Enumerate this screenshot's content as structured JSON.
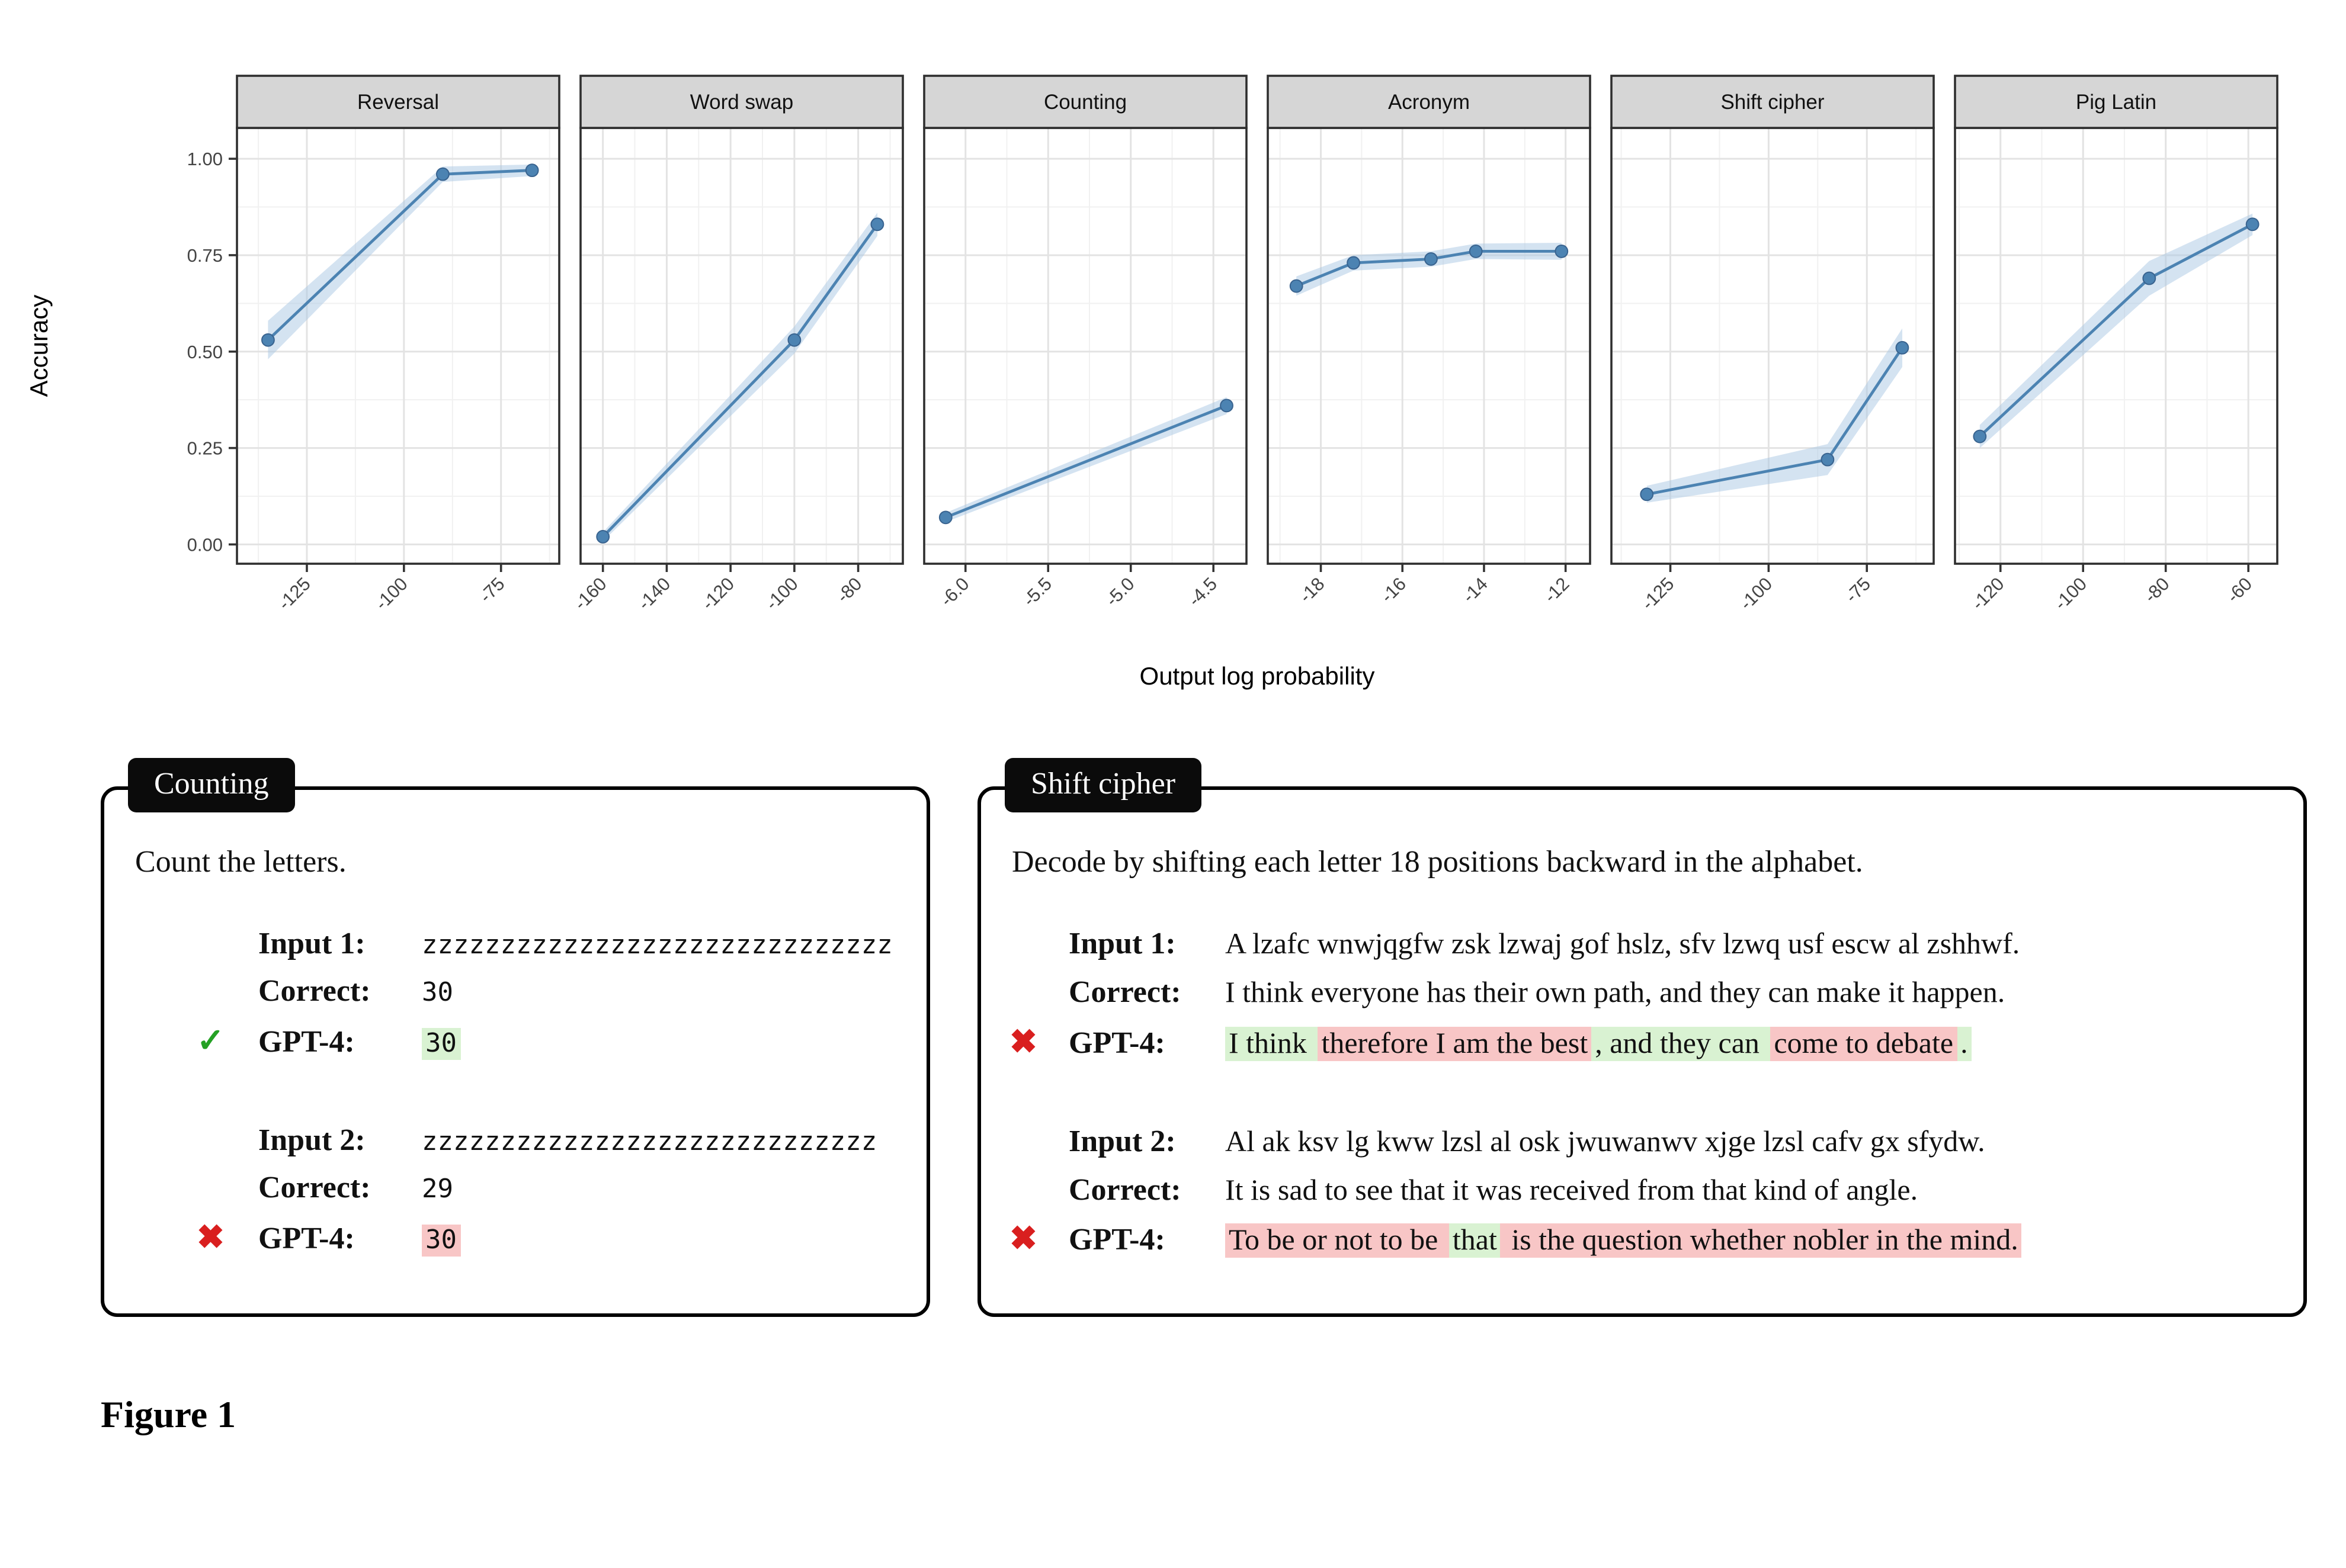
{
  "figure_label": "Figure 1",
  "chart_data": {
    "type": "line",
    "xlabel": "Output log probability",
    "ylabel": "Accuracy",
    "ylim": [
      -0.05,
      1.08
    ],
    "yticks": [
      0,
      0.25,
      0.5,
      0.75,
      1
    ],
    "ytick_labels": [
      "0.00",
      "0.25",
      "0.50",
      "0.75",
      "1.00"
    ],
    "yticks_minor": [
      0.125,
      0.375,
      0.625,
      0.875
    ],
    "grid": true,
    "legend": "none",
    "colors": {
      "line": "#4c83b2",
      "point_edge": "#39638f",
      "ribbon": "#a9c8e4",
      "grid_major": "#e3e3e3",
      "grid_minor": "#f1f1f1",
      "border": "#2f2f2f",
      "strip": "#d6d6d6",
      "tick": "#333333",
      "axis_text": "#444444"
    },
    "facets": [
      {
        "title": "Reversal",
        "xlim": [
          -143,
          -60
        ],
        "xticks": [
          -125,
          -100,
          -75
        ],
        "xtick_labels": [
          "-125",
          "-100",
          "-75"
        ],
        "x": [
          -135,
          -90,
          -67
        ],
        "y": [
          0.53,
          0.96,
          0.97
        ],
        "band": [
          0.05,
          0.02,
          0.015
        ]
      },
      {
        "title": "Word swap",
        "xlim": [
          -167,
          -66
        ],
        "xticks": [
          -160,
          -140,
          -120,
          -100,
          -80
        ],
        "xtick_labels": [
          "-160",
          "-140",
          "-120",
          "-100",
          "-80"
        ],
        "x": [
          -160,
          -100,
          -74
        ],
        "y": [
          0.02,
          0.53,
          0.83
        ],
        "band": [
          0.012,
          0.035,
          0.03
        ]
      },
      {
        "title": "Counting",
        "xlim": [
          -6.25,
          -4.3
        ],
        "xticks": [
          -6.0,
          -5.5,
          -5.0,
          -4.5
        ],
        "xtick_labels": [
          "-6.0",
          "-5.5",
          "-5.0",
          "-4.5"
        ],
        "x": [
          -6.12,
          -4.42
        ],
        "y": [
          0.07,
          0.36
        ],
        "band": [
          0.012,
          0.022
        ]
      },
      {
        "title": "Acronym",
        "xlim": [
          -19.3,
          -11.4
        ],
        "xticks": [
          -18,
          -16,
          -14,
          -12
        ],
        "xtick_labels": [
          "-18",
          "-16",
          "-14",
          "-12"
        ],
        "x": [
          -18.6,
          -17.2,
          -15.3,
          -14.2,
          -12.1
        ],
        "y": [
          0.67,
          0.73,
          0.74,
          0.76,
          0.76
        ],
        "band": [
          0.025,
          0.02,
          0.02,
          0.02,
          0.022
        ]
      },
      {
        "title": "Shift cipher",
        "xlim": [
          -140,
          -58
        ],
        "xticks": [
          -125,
          -100,
          -75
        ],
        "xtick_labels": [
          "-125",
          "-100",
          "-75"
        ],
        "x": [
          -131,
          -85,
          -66
        ],
        "y": [
          0.13,
          0.22,
          0.51
        ],
        "band": [
          0.022,
          0.04,
          0.05
        ]
      },
      {
        "title": "Pig Latin",
        "xlim": [
          -131,
          -53
        ],
        "xticks": [
          -120,
          -100,
          -80,
          -60
        ],
        "xtick_labels": [
          "-120",
          "-100",
          "-80",
          "-60"
        ],
        "x": [
          -125,
          -84,
          -59
        ],
        "y": [
          0.28,
          0.69,
          0.83
        ],
        "band": [
          0.03,
          0.045,
          0.028
        ]
      }
    ]
  },
  "marks": {
    "correct": "✓",
    "incorrect": "✖"
  },
  "examples": [
    {
      "tab": "Counting",
      "instruction": "Count the letters.",
      "blocks": [
        {
          "rows": [
            {
              "label": "Input 1:",
              "segments": [
                {
                  "text": "zzzzzzzzzzzzzzzzzzzzzzzzzzzzzz",
                  "mono": true
                }
              ]
            },
            {
              "label": "Correct:",
              "segments": [
                {
                  "text": "30",
                  "mono": true
                }
              ]
            },
            {
              "label": "GPT-4:",
              "mark": "correct",
              "segments": [
                {
                  "text": "30",
                  "mono": true,
                  "bg": "correct"
                }
              ]
            }
          ]
        },
        {
          "rows": [
            {
              "label": "Input 2:",
              "segments": [
                {
                  "text": "zzzzzzzzzzzzzzzzzzzzzzzzzzzzz",
                  "mono": true
                }
              ]
            },
            {
              "label": "Correct:",
              "segments": [
                {
                  "text": "29",
                  "mono": true
                }
              ]
            },
            {
              "label": "GPT-4:",
              "mark": "incorrect",
              "segments": [
                {
                  "text": "30",
                  "mono": true,
                  "bg": "incorrect"
                }
              ]
            }
          ]
        }
      ]
    },
    {
      "tab": "Shift cipher",
      "instruction": "Decode by shifting each letter 18 positions backward in the alphabet.",
      "blocks": [
        {
          "rows": [
            {
              "label": "Input 1:",
              "segments": [
                {
                  "text": "A lzafc wnwjqgfw zsk lzwaj gof hslz, sfv lzwq usf escw al zshhwf."
                }
              ]
            },
            {
              "label": "Correct:",
              "segments": [
                {
                  "text": "I think everyone has their own path, and they can make it happen."
                }
              ]
            },
            {
              "label": "GPT-4:",
              "mark": "incorrect",
              "segments": [
                {
                  "text": "I think ",
                  "bg": "correct"
                },
                {
                  "text": "therefore I am the best",
                  "bg": "incorrect"
                },
                {
                  "text": ", and they can ",
                  "bg": "correct"
                },
                {
                  "text": "come to debate",
                  "bg": "incorrect"
                },
                {
                  "text": ".",
                  "bg": "correct"
                }
              ]
            }
          ]
        },
        {
          "rows": [
            {
              "label": "Input 2:",
              "segments": [
                {
                  "text": "Al ak ksv lg kww lzsl al osk jwuwanwv xjge lzsl cafv gx sfydw."
                }
              ]
            },
            {
              "label": "Correct:",
              "segments": [
                {
                  "text": "It is sad to see that it was received from that kind of angle."
                }
              ]
            },
            {
              "label": "GPT-4:",
              "mark": "incorrect",
              "segments": [
                {
                  "text": "To be or not to be ",
                  "bg": "incorrect"
                },
                {
                  "text": "that",
                  "bg": "correct"
                },
                {
                  "text": " is the question whether nobler in the mind.",
                  "bg": "incorrect"
                }
              ]
            }
          ]
        }
      ]
    }
  ]
}
